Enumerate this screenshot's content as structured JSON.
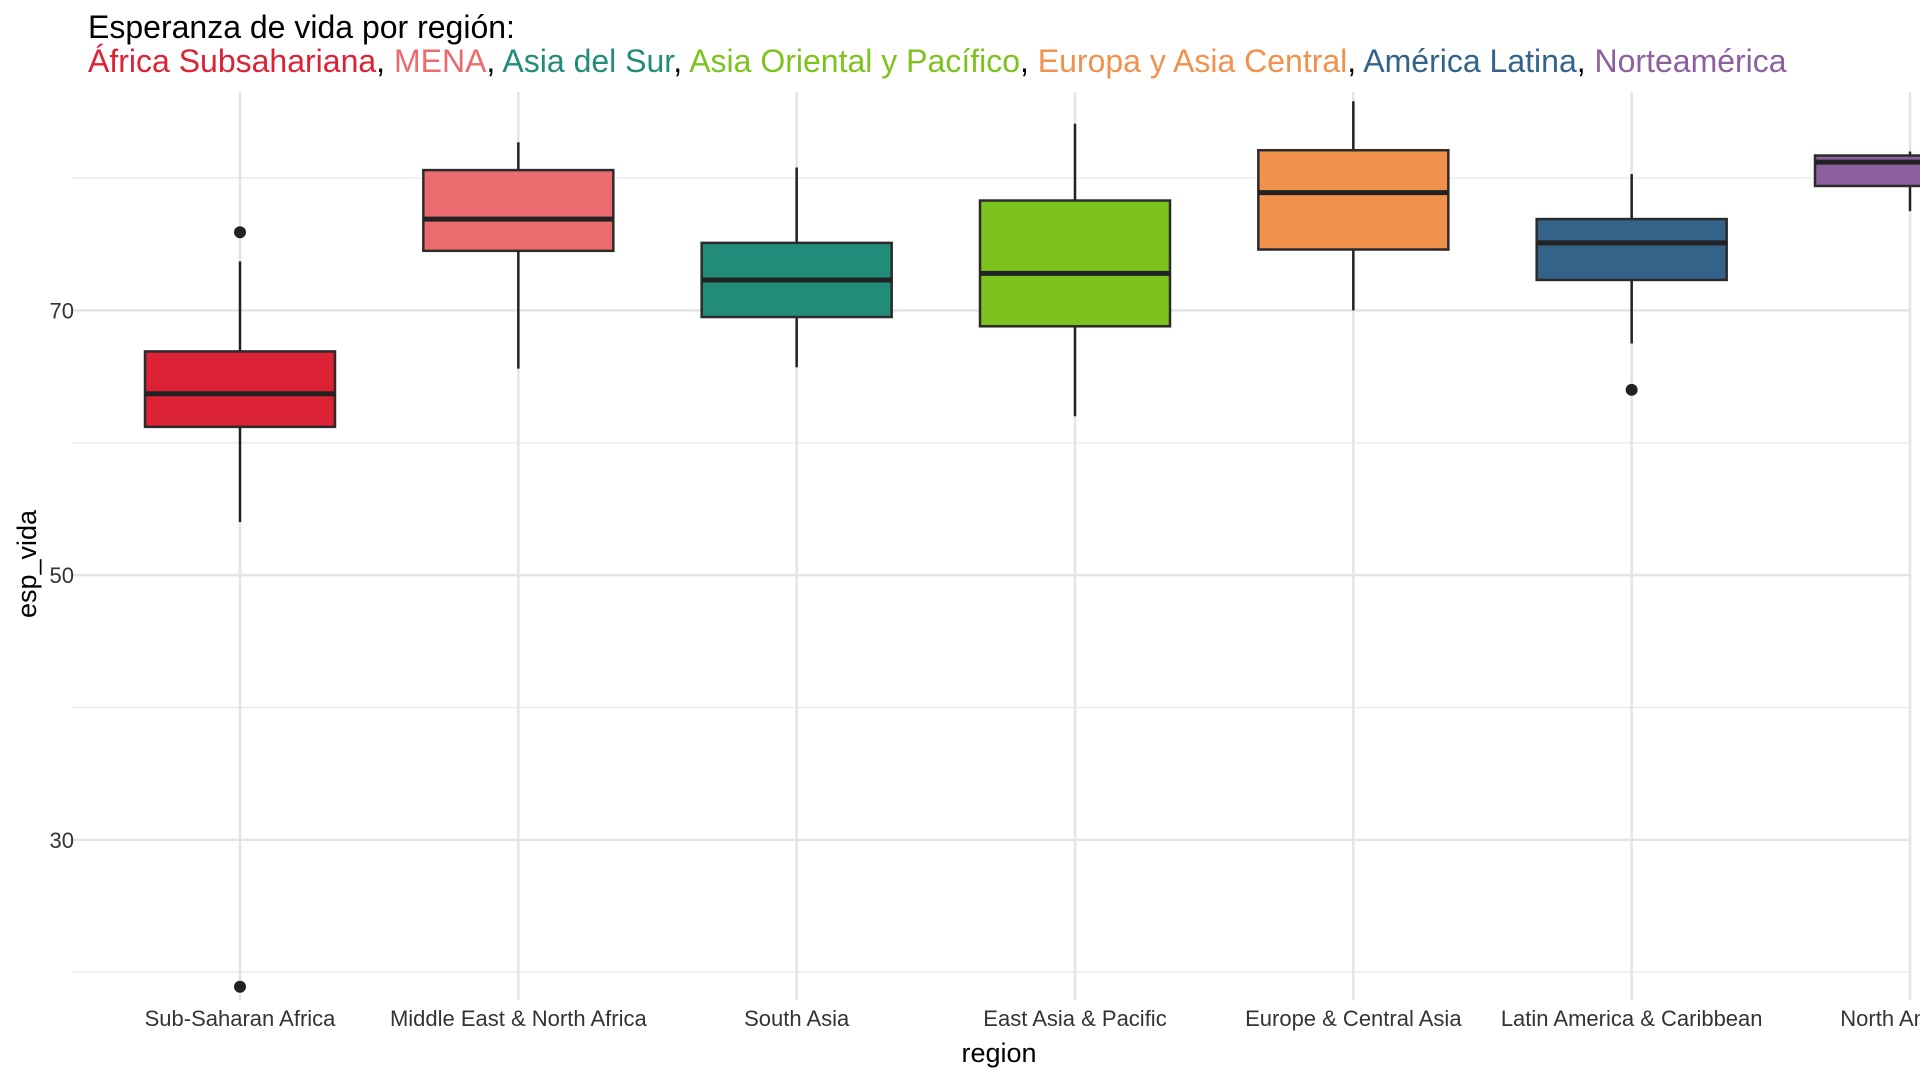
{
  "chart_data": {
    "type": "box",
    "title": "Esperanza de vida por región:",
    "subtitle": [
      {
        "text": "África Subsahariana",
        "color": "#DC2235"
      },
      {
        "text": ", ",
        "color": "#000000"
      },
      {
        "text": "MENA",
        "color": "#EC6B6E"
      },
      {
        "text": ", ",
        "color": "#000000"
      },
      {
        "text": "Asia del Sur",
        "color": "#218C79"
      },
      {
        "text": ", ",
        "color": "#000000"
      },
      {
        "text": "Asia Oriental y Pacífico",
        "color": "#7DC31E"
      },
      {
        "text": ", ",
        "color": "#000000"
      },
      {
        "text": "Europa y Asia Central",
        "color": "#F0924C"
      },
      {
        "text": ", ",
        "color": "#000000"
      },
      {
        "text": "América Latina",
        "color": "#34638A"
      },
      {
        "text": ", ",
        "color": "#000000"
      },
      {
        "text": "Norteamérica",
        "color": "#8D5F9D"
      }
    ],
    "xlabel": "region",
    "ylabel": "esp_vida",
    "ylim": [
      17.9,
      86.5
    ],
    "yticks": [
      30,
      50,
      70
    ],
    "grid": true,
    "legend": "none",
    "categories": [
      "Sub-Saharan Africa",
      "Middle East & North Africa",
      "South Asia",
      "East Asia & Pacific",
      "Europe & Central Asia",
      "Latin America & Caribbean",
      "North America"
    ],
    "boxes": [
      {
        "category": "Sub-Saharan Africa",
        "color": "#DC2235",
        "whisker_low": 54.0,
        "q1": 61.2,
        "median": 63.7,
        "q3": 66.9,
        "whisker_high": 73.7,
        "outliers": [
          75.9,
          18.9
        ]
      },
      {
        "category": "Middle East & North Africa",
        "color": "#EC6B6E",
        "whisker_low": 65.6,
        "q1": 74.5,
        "median": 76.9,
        "q3": 80.6,
        "whisker_high": 82.7,
        "outliers": []
      },
      {
        "category": "South Asia",
        "color": "#218C79",
        "whisker_low": 65.7,
        "q1": 69.5,
        "median": 72.3,
        "q3": 75.1,
        "whisker_high": 80.8,
        "outliers": []
      },
      {
        "category": "East Asia & Pacific",
        "color": "#7DC31E",
        "whisker_low": 62.0,
        "q1": 68.8,
        "median": 72.8,
        "q3": 78.3,
        "whisker_high": 84.1,
        "outliers": []
      },
      {
        "category": "Europe & Central Asia",
        "color": "#F0924C",
        "whisker_low": 70.0,
        "q1": 74.6,
        "median": 78.9,
        "q3": 82.1,
        "whisker_high": 85.8,
        "outliers": []
      },
      {
        "category": "Latin America & Caribbean",
        "color": "#34638A",
        "whisker_low": 67.5,
        "q1": 72.3,
        "median": 75.1,
        "q3": 76.9,
        "whisker_high": 80.3,
        "outliers": [
          64.0
        ]
      },
      {
        "category": "North America",
        "color": "#8D5F9D",
        "whisker_low": 77.5,
        "q1": 79.4,
        "median": 81.2,
        "q3": 81.7,
        "whisker_high": 82.0,
        "outliers": []
      }
    ]
  }
}
